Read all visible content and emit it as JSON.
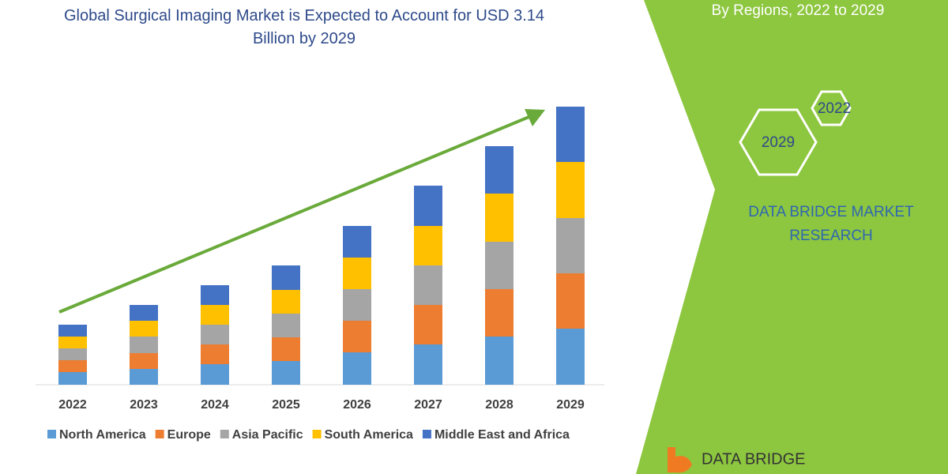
{
  "chart_data": {
    "type": "bar",
    "stacked": true,
    "title": "Global Surgical Imaging Market is Expected to Account for USD 3.14 Billion by 2029",
    "subtitle": "By Regions, 2022 to 2029",
    "categories": [
      "2022",
      "2023",
      "2024",
      "2025",
      "2026",
      "2027",
      "2028",
      "2029"
    ],
    "series": [
      {
        "name": "North America",
        "color": "#5b9bd5",
        "values": [
          16,
          20,
          26,
          30,
          41,
          51,
          61,
          71
        ]
      },
      {
        "name": "Europe",
        "color": "#ed7d31",
        "values": [
          15,
          20,
          25,
          30,
          40,
          50,
          60,
          70
        ]
      },
      {
        "name": "Asia Pacific",
        "color": "#a5a5a5",
        "values": [
          15,
          21,
          25,
          30,
          40,
          50,
          60,
          70
        ]
      },
      {
        "name": "South America",
        "color": "#ffc000",
        "values": [
          15,
          20,
          25,
          30,
          40,
          50,
          61,
          71
        ]
      },
      {
        "name": "Middle East and Africa",
        "color": "#4472c4",
        "values": [
          15,
          20,
          25,
          31,
          40,
          51,
          60,
          70
        ]
      }
    ],
    "trend_arrow_color": "#6aaa3a"
  },
  "panel": {
    "badges": [
      "2022",
      "2029"
    ],
    "brand": "DATA BRIDGE MARKET RESEARCH",
    "logo": "DATA BRIDGE"
  }
}
